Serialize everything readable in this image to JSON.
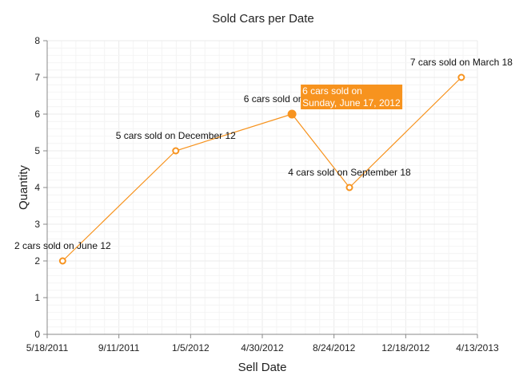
{
  "chart_data": {
    "type": "line",
    "title": "Sold Cars per Date",
    "xlabel": "Sell Date",
    "ylabel": "Quantity",
    "xlim": [
      "2011-05-18",
      "2013-04-13"
    ],
    "ylim": [
      0,
      8
    ],
    "x_tick_labels": [
      "5/18/2011",
      "9/11/2011",
      "1/5/2012",
      "4/30/2012",
      "8/24/2012",
      "12/18/2012",
      "4/13/2013"
    ],
    "y_tick_labels": [
      "0",
      "1",
      "2",
      "3",
      "4",
      "5",
      "6",
      "7",
      "8"
    ],
    "grid": true,
    "series": [
      {
        "color": "#f7931e",
        "points": [
          {
            "x": "2011-06-12",
            "y": 2,
            "label": "2 cars sold on June 12"
          },
          {
            "x": "2011-12-12",
            "y": 5,
            "label": "5 cars sold on December 12"
          },
          {
            "x": "2012-06-17",
            "y": 6,
            "label": "6 cars sold on June 17"
          },
          {
            "x": "2012-09-18",
            "y": 4,
            "label": "4 cars sold on September 18"
          },
          {
            "x": "2013-03-18",
            "y": 7,
            "label": "7 cars sold on March 18"
          }
        ]
      }
    ],
    "tooltip": {
      "point_index": 2,
      "line1": "6 cars sold on",
      "line2": "Sunday, June 17, 2012",
      "background": "#f7931e"
    }
  }
}
